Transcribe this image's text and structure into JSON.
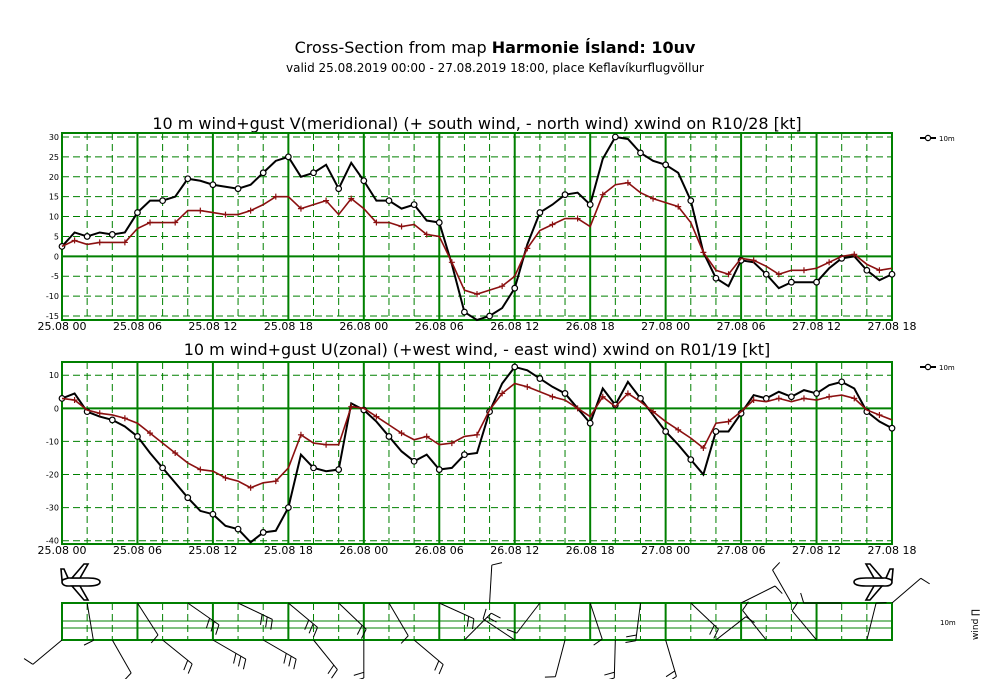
{
  "header": {
    "title_prefix": "Cross-Section from map ",
    "title_bold": "Harmonie Ísland: 10uv",
    "subtitle": "valid 25.08.2019 00:00 - 27.08.2019 18:00, place Keflavíkurflugvöllur"
  },
  "x_tick_labels": [
    "25.08 00",
    "25.08 06",
    "25.08 12",
    "25.08 18",
    "26.08 00",
    "26.08 06",
    "26.08 12",
    "26.08 18",
    "27.08 00",
    "27.08 06",
    "27.08 12",
    "27.08 18"
  ],
  "chart_data": [
    {
      "type": "line",
      "title": "10 m wind+gust V(meridional) (+ south wind, - north wind) xwind on R10/28 [kt]",
      "x_unit": "hours from 25.08.2019 00:00",
      "xlim": [
        0,
        66
      ],
      "ylim": [
        -16,
        31
      ],
      "yticks": [
        30,
        25,
        20,
        15,
        10,
        5,
        0,
        -5,
        -10,
        -15
      ],
      "grid": true,
      "legend_position": "top-right",
      "legend": "10m",
      "colors": {
        "gust": "#000000",
        "wind": "#8b1010",
        "grid": "#008000"
      },
      "x": [
        0,
        1,
        2,
        3,
        4,
        5,
        6,
        7,
        8,
        9,
        10,
        11,
        12,
        13,
        14,
        15,
        16,
        17,
        18,
        19,
        20,
        21,
        22,
        23,
        24,
        25,
        26,
        27,
        28,
        29,
        30,
        31,
        32,
        33,
        34,
        35,
        36,
        37,
        38,
        39,
        40,
        41,
        42,
        43,
        44,
        45,
        46,
        47,
        48,
        49,
        50,
        51,
        52,
        53,
        54,
        55,
        56,
        57,
        58,
        59,
        60,
        61,
        62,
        63,
        64,
        65,
        66
      ],
      "series": [
        {
          "name": "10m",
          "role": "gust",
          "marker": "circle",
          "values": [
            2.5,
            6,
            5,
            6,
            5.5,
            6,
            11,
            14,
            14,
            15,
            19.5,
            19,
            18,
            17.5,
            17,
            18,
            21,
            24,
            25,
            20,
            21,
            23,
            17,
            23.5,
            19,
            14,
            14,
            12,
            13,
            9,
            8.5,
            -2,
            -14,
            -16,
            -15,
            -13,
            -8,
            3,
            11,
            13,
            15.5,
            16,
            13,
            24.5,
            30,
            29.5,
            26,
            24,
            23,
            21,
            14,
            1,
            -5.5,
            -7.5,
            -1,
            -1.5,
            -4.5,
            -8,
            -6.5,
            -6.5,
            -6.5,
            -3,
            -0.5,
            0,
            -3.5,
            -6,
            -4.5
          ]
        },
        {
          "name": "",
          "role": "wind",
          "marker": "plus",
          "values": [
            2.5,
            4,
            3,
            3.5,
            3.5,
            3.5,
            7,
            8.5,
            8.5,
            8.5,
            11.5,
            11.5,
            11,
            10.5,
            10.5,
            11.5,
            13,
            15,
            15,
            12,
            13,
            14,
            10.5,
            14.5,
            12,
            8.5,
            8.5,
            7.5,
            8,
            5.5,
            5,
            -1.5,
            -8.5,
            -9.5,
            -8.5,
            -7.5,
            -5,
            2,
            6.5,
            8,
            9.5,
            9.5,
            7.5,
            15.5,
            18,
            18.5,
            16,
            14.5,
            13.5,
            12.5,
            8.5,
            1,
            -3.5,
            -4.5,
            -0.5,
            -1,
            -2.5,
            -4.5,
            -3.5,
            -3.5,
            -3,
            -1.5,
            0,
            0.5,
            -2,
            -3.5,
            -3
          ]
        }
      ]
    },
    {
      "type": "line",
      "title": "10 m wind+gust U(zonal) (+west wind, - east wind) xwind on R01/19 [kt]",
      "x_unit": "hours from 25.08.2019 00:00",
      "xlim": [
        0,
        66
      ],
      "ylim": [
        -41,
        14
      ],
      "yticks": [
        10,
        0,
        -10,
        -20,
        -30,
        -40
      ],
      "grid": true,
      "legend_position": "top-right",
      "legend": "10m",
      "colors": {
        "gust": "#000000",
        "wind": "#8b1010",
        "grid": "#008000"
      },
      "x": [
        0,
        1,
        2,
        3,
        4,
        5,
        6,
        7,
        8,
        9,
        10,
        11,
        12,
        13,
        14,
        15,
        16,
        17,
        18,
        19,
        20,
        21,
        22,
        23,
        24,
        25,
        26,
        27,
        28,
        29,
        30,
        31,
        32,
        33,
        34,
        35,
        36,
        37,
        38,
        39,
        40,
        41,
        42,
        43,
        44,
        45,
        46,
        47,
        48,
        49,
        50,
        51,
        52,
        53,
        54,
        55,
        56,
        57,
        58,
        59,
        60,
        61,
        62,
        63,
        64,
        65,
        66
      ],
      "series": [
        {
          "name": "10m",
          "role": "gust",
          "marker": "circle",
          "values": [
            3,
            4.5,
            -1,
            -2.5,
            -3.5,
            -5.5,
            -8.5,
            -13.5,
            -18,
            -22.5,
            -27,
            -31,
            -32,
            -35.5,
            -36.5,
            -40.5,
            -37.5,
            -37,
            -30,
            -14,
            -18,
            -19,
            -18.5,
            1.5,
            -0.5,
            -4,
            -8.5,
            -13,
            -16,
            -14,
            -18.5,
            -18,
            -14,
            -13.5,
            -1,
            7.5,
            12.5,
            11.5,
            9,
            6.5,
            4.5,
            0,
            -4.5,
            6,
            1,
            8,
            3,
            -2,
            -7,
            -11,
            -15.5,
            -20,
            -7,
            -7,
            -1.5,
            4,
            3,
            5,
            3.5,
            5.5,
            4.5,
            7,
            8,
            6,
            -1,
            -4,
            -6
          ]
        },
        {
          "name": "",
          "role": "wind",
          "marker": "plus",
          "values": [
            3,
            2.5,
            -0.5,
            -1.5,
            -2,
            -3,
            -4.5,
            -7.5,
            -10.5,
            -13.5,
            -16.5,
            -18.5,
            -19,
            -21,
            -22,
            -24,
            -22.5,
            -22,
            -18,
            -8,
            -10.5,
            -11,
            -11,
            0.5,
            0,
            -2.5,
            -5,
            -7.5,
            -9.5,
            -8.5,
            -11,
            -10.5,
            -8.5,
            -8,
            -0.5,
            4.5,
            7.5,
            6.5,
            5,
            3.5,
            2.5,
            0,
            -2.5,
            3.5,
            0.5,
            4.5,
            2,
            -1,
            -4,
            -6.5,
            -9,
            -12,
            -4.5,
            -4,
            -1,
            2.5,
            2,
            3,
            2,
            3,
            2.5,
            3.5,
            4,
            3,
            -0.5,
            -2,
            -3.5
          ]
        }
      ]
    },
    {
      "type": "wind-barbs",
      "legend": "10m",
      "axis_label": "wind ∏",
      "note": "wind barb strip with aircraft symbols marking runway ends"
    }
  ]
}
